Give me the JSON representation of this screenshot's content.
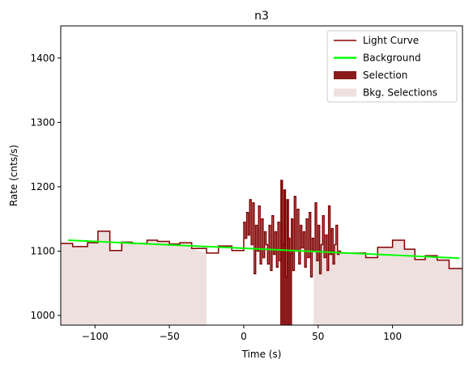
{
  "chart_data": {
    "type": "line",
    "title": "n3",
    "xlabel": "Time (s)",
    "ylabel": "Rate (cnts/s)",
    "xlim": [
      -123,
      147
    ],
    "ylim": [
      985,
      1450
    ],
    "xticks": [
      -100,
      -50,
      0,
      50,
      100
    ],
    "yticks": [
      1000,
      1100,
      1200,
      1300,
      1400
    ],
    "grid": false,
    "legend_position": "top-right",
    "colors": {
      "light_curve": "#800000",
      "background": "#00ff00",
      "selection": "#8b1a1a",
      "bkg_selection": "#efe0e0"
    },
    "series": [
      {
        "name": "Light Curve",
        "style": "steps-post",
        "x": [
          -123,
          -115,
          -105,
          -98,
          -90,
          -82,
          -75,
          -65,
          -58,
          -50,
          -43,
          -35,
          -25,
          -17,
          -8,
          0,
          1,
          2,
          3,
          4,
          5,
          6,
          7,
          8,
          9,
          10,
          11,
          12,
          13,
          14,
          15,
          16,
          17,
          18,
          19,
          20,
          21,
          22,
          23,
          24,
          25,
          26,
          27,
          28,
          29,
          30,
          31,
          32,
          33,
          34,
          35,
          36,
          37,
          38,
          39,
          40,
          41,
          42,
          43,
          44,
          45,
          46,
          47,
          48,
          49,
          50,
          51,
          52,
          53,
          54,
          55,
          56,
          57,
          58,
          59,
          60,
          61,
          62,
          63,
          64,
          65,
          72,
          82,
          90,
          100,
          108,
          115,
          122,
          130,
          138,
          147
        ],
        "y": [
          1112,
          1107,
          1113,
          1131,
          1101,
          1114,
          1112,
          1117,
          1115,
          1111,
          1113,
          1104,
          1097,
          1108,
          1101,
          1145,
          1120,
          1160,
          1125,
          1180,
          1110,
          1175,
          1065,
          1140,
          1100,
          1170,
          1080,
          1150,
          1090,
          1130,
          1110,
          1080,
          1140,
          1070,
          1155,
          1095,
          1130,
          1075,
          1145,
          1085,
          1210,
          1110,
          1195,
          1060,
          1180,
          1120,
          1095,
          1150,
          1070,
          1185,
          1100,
          1165,
          1080,
          1140,
          1105,
          1130,
          1075,
          1150,
          1090,
          1160,
          1060,
          1120,
          1100,
          1175,
          1085,
          1140,
          1065,
          1110,
          1155,
          1090,
          1125,
          1070,
          1170,
          1095,
          1135,
          1080,
          1110,
          1140,
          1095,
          1100,
          1097,
          1097,
          1090,
          1106,
          1117,
          1103,
          1087,
          1093,
          1086,
          1073,
          1073
        ]
      },
      {
        "name": "Background",
        "style": "line",
        "x": [
          -118,
          145
        ],
        "y": [
          1117,
          1089
        ]
      }
    ],
    "selection": {
      "name": "Selection",
      "x_range": [
        24.5,
        32.5
      ]
    },
    "bkg_selections": {
      "name": "Bkg. Selections",
      "ranges": [
        [
          -123,
          -25
        ],
        [
          47,
          147
        ]
      ]
    },
    "legend": [
      "Light Curve",
      "Background",
      "Selection",
      "Bkg. Selections"
    ]
  }
}
